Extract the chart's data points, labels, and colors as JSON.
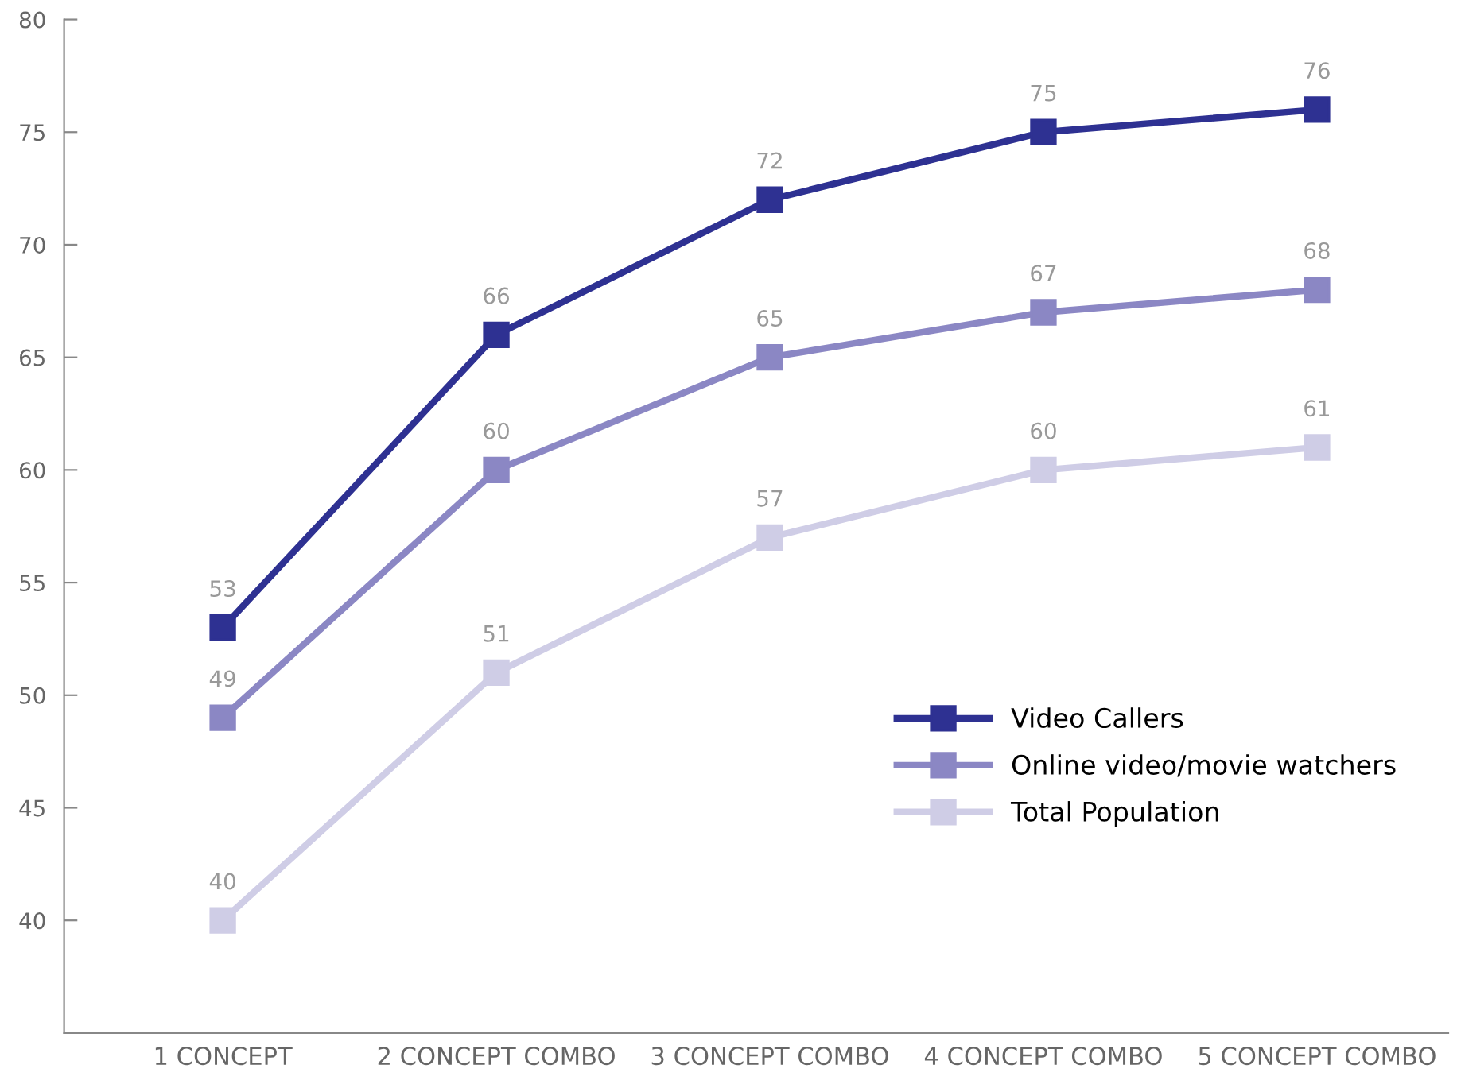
{
  "chart_data": {
    "type": "line",
    "categories": [
      "1 CONCEPT",
      "2 CONCEPT COMBO",
      "3 CONCEPT COMBO",
      "4 CONCEPT COMBO",
      "5 CONCEPT COMBO"
    ],
    "series": [
      {
        "name": "Video Callers",
        "color": "#2e3192",
        "values": [
          53,
          66,
          72,
          75,
          76
        ]
      },
      {
        "name": "Online video/movie watchers",
        "color": "#8b87c4",
        "values": [
          49,
          60,
          65,
          67,
          68
        ]
      },
      {
        "name": "Total Population",
        "color": "#cfcde6",
        "values": [
          40,
          51,
          57,
          60,
          61
        ]
      }
    ],
    "ylim": [
      35,
      80
    ],
    "yticks": [
      {
        "value": 35,
        "label": null
      },
      40,
      45,
      50,
      55,
      60,
      65,
      70,
      75,
      80
    ],
    "grid": false,
    "legend": "lower right",
    "marker": "square",
    "line_style": "solid",
    "data_labels": true
  }
}
